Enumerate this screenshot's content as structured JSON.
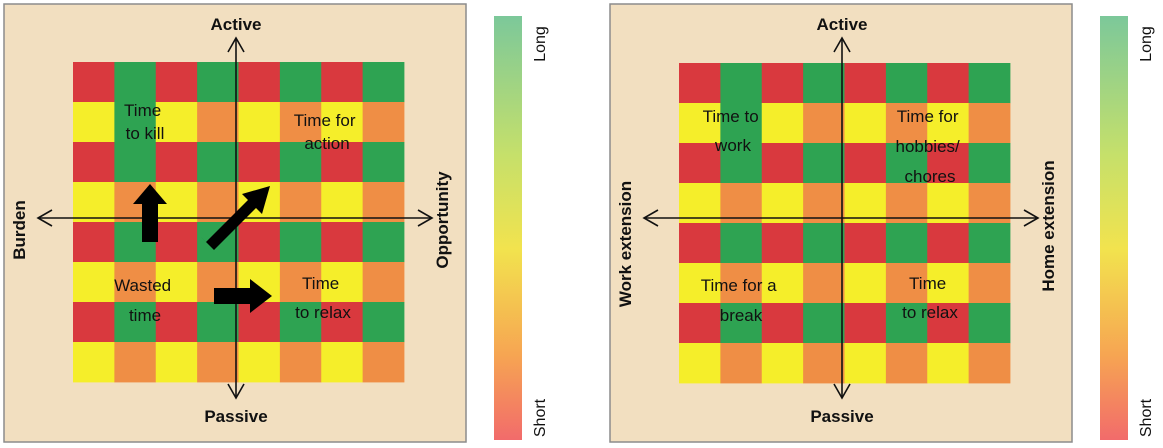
{
  "colors": {
    "panel_bg": "#f2dfc0",
    "panel_border": "#8c8c8c",
    "red": "#d9393e",
    "green": "#2ea352",
    "yellow": "#f5ee2a",
    "orange": "#ef8e45",
    "axis": "#111111",
    "arrow": "#000000"
  },
  "color_scale": {
    "top_label": "Long",
    "bottom_label": "Short",
    "stops": [
      "#7cc89a",
      "#c6e06a",
      "#f2e34e",
      "#f6a552",
      "#f26b6b"
    ]
  },
  "grid_pattern": [
    [
      "R",
      "G",
      "R",
      "G",
      "R",
      "G",
      "R",
      "G"
    ],
    [
      "Y",
      "G",
      "Y",
      "O",
      "Y",
      "O",
      "Y",
      "O"
    ],
    [
      "R",
      "G",
      "R",
      "G",
      "R",
      "G",
      "R",
      "G"
    ],
    [
      "Y",
      "O",
      "Y",
      "O",
      "Y",
      "O",
      "Y",
      "O"
    ],
    [
      "R",
      "G",
      "R",
      "G",
      "R",
      "G",
      "R",
      "G"
    ],
    [
      "Y",
      "O",
      "Y",
      "O",
      "Y",
      "O",
      "Y",
      "O"
    ],
    [
      "R",
      "G",
      "R",
      "G",
      "R",
      "G",
      "R",
      "G"
    ],
    [
      "Y",
      "O",
      "Y",
      "O",
      "Y",
      "O",
      "Y",
      "O"
    ]
  ],
  "panels": [
    {
      "axis_top": "Active",
      "axis_bottom": "Passive",
      "axis_left": "Burden",
      "axis_right": "Opportunity",
      "quadrant_labels": [
        [
          "Time",
          "to kill"
        ],
        [
          "Time for",
          "action"
        ],
        [
          "Wasted",
          "time"
        ],
        [
          "Time",
          "to relax"
        ]
      ],
      "arrows": [
        "up",
        "up-right",
        "right"
      ]
    },
    {
      "axis_top": "Active",
      "axis_bottom": "Passive",
      "axis_left": "Work extension",
      "axis_right": "Home extension",
      "quadrant_labels": [
        [
          "Time to",
          "work"
        ],
        [
          "Time for",
          "hobbies/",
          "chores"
        ],
        [
          "Time for a",
          "break"
        ],
        [
          "Time",
          "to relax"
        ]
      ],
      "arrows": []
    }
  ]
}
